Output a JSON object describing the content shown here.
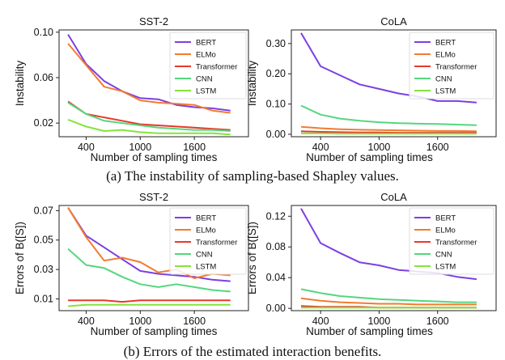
{
  "captions": {
    "a": "(a) The instability of sampling-based Shapley values.",
    "b": "(b) Errors of the estimated interaction benefits."
  },
  "series_colors": {
    "BERT": "#7b3fe4",
    "ELMo": "#f47a30",
    "Transformer": "#e8392c",
    "CNN": "#56d67e",
    "LSTM": "#82e53c"
  },
  "chart_data": [
    {
      "type": "line",
      "title": "SST-2",
      "xlabel": "Number of sampling times",
      "ylabel": "Instability",
      "xlim": [
        100,
        2200
      ],
      "ylim": [
        0.008,
        0.102
      ],
      "xticks": [
        400,
        1000,
        1600
      ],
      "yticks": [
        0.02,
        0.06,
        0.1
      ],
      "ytick_labels": [
        "0.02",
        "0.06",
        "0.10"
      ],
      "legend": "top-right",
      "x": [
        200,
        400,
        600,
        800,
        1000,
        1200,
        1400,
        1600,
        1800,
        2000
      ],
      "series": [
        {
          "name": "BERT",
          "values": [
            0.098,
            0.072,
            0.057,
            0.048,
            0.042,
            0.041,
            0.036,
            0.034,
            0.033,
            0.031
          ]
        },
        {
          "name": "ELMo",
          "values": [
            0.09,
            0.071,
            0.052,
            0.048,
            0.04,
            0.038,
            0.037,
            0.036,
            0.031,
            0.029
          ]
        },
        {
          "name": "Transformer",
          "values": [
            0.039,
            0.028,
            0.025,
            0.022,
            0.019,
            0.018,
            0.017,
            0.016,
            0.015,
            0.014
          ]
        },
        {
          "name": "CNN",
          "values": [
            0.038,
            0.028,
            0.022,
            0.02,
            0.018,
            0.016,
            0.015,
            0.014,
            0.014,
            0.013
          ]
        },
        {
          "name": "LSTM",
          "values": [
            0.023,
            0.017,
            0.013,
            0.014,
            0.012,
            0.011,
            0.011,
            0.011,
            0.011,
            0.01
          ]
        }
      ]
    },
    {
      "type": "line",
      "title": "CoLA",
      "xlabel": "Number of sampling times",
      "ylabel": "Instability",
      "xlim": [
        100,
        2200
      ],
      "ylim": [
        -0.008,
        0.345
      ],
      "xticks": [
        400,
        1000,
        1600
      ],
      "yticks": [
        0.0,
        0.1,
        0.2,
        0.3
      ],
      "ytick_labels": [
        "0.00",
        "0.10",
        "0.20",
        "0.30"
      ],
      "legend": "top-right",
      "x": [
        200,
        400,
        600,
        800,
        1000,
        1200,
        1400,
        1600,
        1800,
        2000
      ],
      "series": [
        {
          "name": "BERT",
          "values": [
            0.335,
            0.225,
            0.195,
            0.165,
            0.15,
            0.135,
            0.125,
            0.11,
            0.11,
            0.105
          ]
        },
        {
          "name": "ELMo",
          "values": [
            0.025,
            0.02,
            0.017,
            0.015,
            0.014,
            0.013,
            0.012,
            0.011,
            0.011,
            0.01
          ]
        },
        {
          "name": "Transformer",
          "values": [
            0.01,
            0.008,
            0.007,
            0.006,
            0.006,
            0.005,
            0.005,
            0.005,
            0.005,
            0.005
          ]
        },
        {
          "name": "CNN",
          "values": [
            0.095,
            0.065,
            0.052,
            0.045,
            0.04,
            0.037,
            0.035,
            0.034,
            0.032,
            0.03
          ]
        },
        {
          "name": "LSTM",
          "values": [
            0.003,
            0.003,
            0.002,
            0.002,
            0.002,
            0.002,
            0.002,
            0.002,
            0.002,
            0.002
          ]
        }
      ]
    },
    {
      "type": "line",
      "title": "SST-2",
      "xlabel": "Number of sampling times",
      "ylabel": "Errors of B([S])",
      "xlim": [
        100,
        2200
      ],
      "ylim": [
        0.002,
        0.0735
      ],
      "xticks": [
        400,
        1000,
        1600
      ],
      "yticks": [
        0.01,
        0.03,
        0.05,
        0.07
      ],
      "ytick_labels": [
        "0.01",
        "0.03",
        "0.05",
        "0.07"
      ],
      "legend": "top-right",
      "x": [
        200,
        400,
        600,
        800,
        1000,
        1200,
        1400,
        1600,
        1800,
        2000
      ],
      "series": [
        {
          "name": "BERT",
          "values": [
            0.072,
            0.053,
            0.045,
            0.037,
            0.029,
            0.027,
            0.026,
            0.025,
            0.023,
            0.022
          ]
        },
        {
          "name": "ELMo",
          "values": [
            0.072,
            0.052,
            0.036,
            0.038,
            0.035,
            0.028,
            0.03,
            0.024,
            0.027,
            0.026
          ]
        },
        {
          "name": "Transformer",
          "values": [
            0.009,
            0.009,
            0.009,
            0.008,
            0.009,
            0.009,
            0.009,
            0.009,
            0.009,
            0.009
          ]
        },
        {
          "name": "CNN",
          "values": [
            0.044,
            0.033,
            0.031,
            0.025,
            0.02,
            0.018,
            0.02,
            0.018,
            0.016,
            0.015
          ]
        },
        {
          "name": "LSTM",
          "values": [
            0.005,
            0.006,
            0.006,
            0.006,
            0.006,
            0.006,
            0.006,
            0.006,
            0.006,
            0.006
          ]
        }
      ]
    },
    {
      "type": "line",
      "title": "CoLA",
      "xlabel": "Number of sampling times",
      "ylabel": "Errors of B([S])",
      "xlim": [
        100,
        2200
      ],
      "ylim": [
        -0.003,
        0.134
      ],
      "xticks": [
        400,
        1000,
        1600
      ],
      "yticks": [
        0.0,
        0.04,
        0.08,
        0.12
      ],
      "ytick_labels": [
        "0.00",
        "0.04",
        "0.08",
        "0.12"
      ],
      "legend": "top-right",
      "x": [
        200,
        400,
        600,
        800,
        1000,
        1200,
        1400,
        1600,
        1800,
        2000
      ],
      "series": [
        {
          "name": "BERT",
          "values": [
            0.13,
            0.085,
            0.072,
            0.06,
            0.056,
            0.05,
            0.048,
            0.046,
            0.041,
            0.038
          ]
        },
        {
          "name": "ELMo",
          "values": [
            0.013,
            0.01,
            0.008,
            0.007,
            0.006,
            0.006,
            0.005,
            0.005,
            0.005,
            0.005
          ]
        },
        {
          "name": "Transformer",
          "values": [
            0.003,
            0.002,
            0.002,
            0.002,
            0.001,
            0.001,
            0.001,
            0.001,
            0.001,
            0.001
          ]
        },
        {
          "name": "CNN",
          "values": [
            0.025,
            0.02,
            0.016,
            0.014,
            0.012,
            0.011,
            0.01,
            0.009,
            0.008,
            0.008
          ]
        },
        {
          "name": "LSTM",
          "values": [
            0.001,
            0.001,
            0.001,
            0.001,
            0.001,
            0.001,
            0.001,
            0.001,
            0.001,
            0.001
          ]
        }
      ]
    }
  ]
}
